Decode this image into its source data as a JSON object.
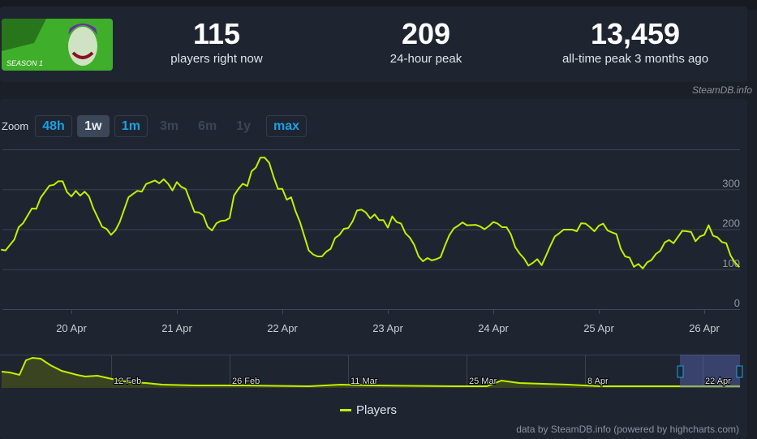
{
  "header": {
    "capsule_alt": "SEASON 1",
    "stats": [
      {
        "value": "115",
        "label": "players right now"
      },
      {
        "value": "209",
        "label": "24-hour peak"
      },
      {
        "value": "13,459",
        "label": "all-time peak 3 months ago"
      }
    ],
    "attribution": "SteamDB.info"
  },
  "zoom": {
    "label": "Zoom",
    "buttons": [
      {
        "label": "48h",
        "state": "enabled"
      },
      {
        "label": "1w",
        "state": "active"
      },
      {
        "label": "1m",
        "state": "enabled"
      },
      {
        "label": "3m",
        "state": "disabled"
      },
      {
        "label": "6m",
        "state": "disabled"
      },
      {
        "label": "1y",
        "state": "disabled"
      },
      {
        "label": "max",
        "state": "enabled"
      }
    ]
  },
  "chart_data": {
    "type": "line",
    "title": "",
    "xlabel": "",
    "ylabel": "",
    "ylim": [
      0,
      400
    ],
    "y_ticks": [
      "0",
      "100",
      "200",
      "300"
    ],
    "x_ticks": [
      "20 Apr",
      "21 Apr",
      "22 Apr",
      "23 Apr",
      "24 Apr",
      "25 Apr",
      "26 Apr"
    ],
    "grid": true,
    "legend": "bottom-center",
    "line_color": "#c4ee00",
    "series": [
      {
        "name": "Players",
        "x": [
          "19 Apr 08:00",
          "19 Apr 09:00",
          "19 Apr 11:00",
          "19 Apr 12:00",
          "19 Apr 13:00",
          "19 Apr 15:00",
          "19 Apr 16:00",
          "19 Apr 17:00",
          "19 Apr 19:00",
          "19 Apr 20:00",
          "19 Apr 21:00",
          "19 Apr 22:00",
          "19 Apr 23:00",
          "20 Apr 00:00",
          "20 Apr 01:00",
          "20 Apr 02:00",
          "20 Apr 03:00",
          "20 Apr 04:00",
          "20 Apr 05:00",
          "20 Apr 07:00",
          "20 Apr 08:00",
          "20 Apr 09:00",
          "20 Apr 10:00",
          "20 Apr 11:00",
          "20 Apr 13:00",
          "20 Apr 15:00",
          "20 Apr 16:00",
          "20 Apr 17:00",
          "20 Apr 19:00",
          "20 Apr 20:00",
          "20 Apr 21:00",
          "20 Apr 22:00",
          "20 Apr 23:00",
          "21 Apr 00:00",
          "21 Apr 01:00",
          "21 Apr 02:00",
          "21 Apr 04:00",
          "21 Apr 05:00",
          "21 Apr 06:00",
          "21 Apr 07:00",
          "21 Apr 08:00",
          "21 Apr 09:00",
          "21 Apr 10:00",
          "21 Apr 11:00",
          "21 Apr 12:00",
          "21 Apr 13:00",
          "21 Apr 14:00",
          "21 Apr 15:00",
          "21 Apr 16:00",
          "21 Apr 17:00",
          "21 Apr 18:00",
          "21 Apr 19:00",
          "21 Apr 20:00",
          "21 Apr 21:00",
          "21 Apr 22:00",
          "21 Apr 23:00",
          "22 Apr 00:00",
          "22 Apr 01:00",
          "22 Apr 02:00",
          "22 Apr 03:00",
          "22 Apr 04:00",
          "22 Apr 06:00",
          "22 Apr 07:00",
          "22 Apr 08:00",
          "22 Apr 09:00",
          "22 Apr 10:00",
          "22 Apr 11:00",
          "22 Apr 12:00",
          "22 Apr 13:00",
          "22 Apr 14:00",
          "22 Apr 15:00",
          "22 Apr 16:00",
          "22 Apr 17:00",
          "22 Apr 18:00",
          "22 Apr 19:00",
          "22 Apr 20:00",
          "22 Apr 21:00",
          "22 Apr 22:00",
          "22 Apr 23:00",
          "23 Apr 00:00",
          "23 Apr 01:00",
          "23 Apr 02:00",
          "23 Apr 03:00",
          "23 Apr 04:00",
          "23 Apr 05:00",
          "23 Apr 06:00",
          "23 Apr 07:00",
          "23 Apr 08:00",
          "23 Apr 09:00",
          "23 Apr 10:00",
          "23 Apr 11:00",
          "23 Apr 12:00",
          "23 Apr 13:00",
          "23 Apr 14:00",
          "23 Apr 15:00",
          "23 Apr 16:00",
          "23 Apr 17:00",
          "23 Apr 18:00",
          "23 Apr 20:00",
          "23 Apr 21:00",
          "23 Apr 22:00",
          "23 Apr 23:00",
          "24 Apr 00:00",
          "24 Apr 01:00",
          "24 Apr 02:00",
          "24 Apr 03:00",
          "24 Apr 04:00",
          "24 Apr 05:00",
          "24 Apr 06:00",
          "24 Apr 07:00",
          "24 Apr 08:00",
          "24 Apr 09:00",
          "24 Apr 10:00",
          "24 Apr 11:00",
          "24 Apr 12:00",
          "24 Apr 13:00",
          "24 Apr 14:00",
          "24 Apr 15:00",
          "24 Apr 16:00",
          "24 Apr 18:00",
          "24 Apr 19:00",
          "24 Apr 20:00",
          "24 Apr 21:00",
          "24 Apr 22:00",
          "24 Apr 23:00",
          "25 Apr 00:00",
          "25 Apr 01:00",
          "25 Apr 02:00",
          "25 Apr 03:00",
          "25 Apr 04:00",
          "25 Apr 05:00",
          "25 Apr 06:00",
          "25 Apr 07:00",
          "25 Apr 08:00",
          "25 Apr 09:00",
          "25 Apr 10:00",
          "25 Apr 11:00",
          "25 Apr 12:00",
          "25 Apr 13:00",
          "25 Apr 14:00",
          "25 Apr 15:00",
          "25 Apr 16:00",
          "25 Apr 17:00",
          "25 Apr 19:00",
          "25 Apr 20:00",
          "25 Apr 21:00",
          "25 Apr 22:00",
          "25 Apr 23:00",
          "26 Apr 00:00",
          "26 Apr 01:00",
          "26 Apr 02:00",
          "26 Apr 03:00",
          "26 Apr 04:00",
          "26 Apr 05:00",
          "26 Apr 06:00",
          "26 Apr 07:00",
          "26 Apr 08:00"
        ],
        "y": [
          149,
          147,
          174,
          205,
          215,
          252,
          251,
          279,
          309,
          311,
          320,
          320,
          293,
          282,
          296,
          284,
          294,
          282,
          252,
          206,
          201,
          186,
          197,
          218,
          280,
          296,
          294,
          313,
          322,
          315,
          325,
          314,
          297,
          318,
          306,
          301,
          243,
          242,
          235,
          206,
          197,
          215,
          221,
          222,
          228,
          284,
          301,
          314,
          308,
          345,
          355,
          379,
          379,
          366,
          331,
          301,
          301,
          274,
          280,
          245,
          218,
          147,
          137,
          132,
          132,
          144,
          151,
          178,
          186,
          201,
          203,
          220,
          247,
          249,
          242,
          227,
          237,
          223,
          223,
          204,
          232,
          218,
          214,
          190,
          179,
          161,
          132,
          120,
          128,
          122,
          125,
          130,
          159,
          185,
          202,
          209,
          217,
          210,
          211,
          207,
          200,
          208,
          218,
          214,
          205,
          205,
          187,
          155,
          139,
          127,
          109,
          116,
          125,
          110,
          134,
          159,
          182,
          190,
          199,
          199,
          195,
          215,
          214,
          205,
          195,
          209,
          214,
          197,
          192,
          188,
          151,
          132,
          129,
          106,
          113,
          102,
          117,
          123,
          138,
          146,
          167,
          173,
          165,
          196,
          195,
          193,
          170,
          182,
          186,
          210,
          184,
          180,
          168,
          165,
          134,
          117,
          105
        ]
      }
    ]
  },
  "navigator": {
    "x_ticks": [
      "12 Feb",
      "26 Feb",
      "11 Mar",
      "25 Mar",
      "8 Apr",
      "22 Apr"
    ]
  },
  "legend": {
    "label": "Players"
  },
  "credits": "data by SteamDB.info (powered by highcharts.com)"
}
